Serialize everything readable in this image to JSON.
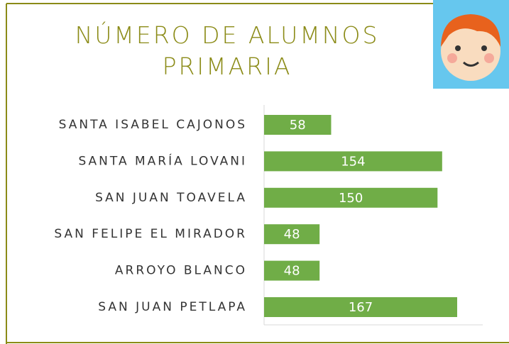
{
  "chart_data": {
    "type": "hbar",
    "title": "NÚMERO DE ALUMNOS PRIMARIA",
    "categories": [
      "SANTA ISABEL CAJONOS",
      "SANTA MARÍA LOVANI",
      "SAN JUAN TOAVELA",
      "SAN FELIPE EL MIRADOR",
      "ARROYO BLANCO",
      "SAN JUAN PETLAPA"
    ],
    "values": [
      58,
      154,
      150,
      48,
      48,
      167
    ],
    "color": "#70ad47"
  }
}
